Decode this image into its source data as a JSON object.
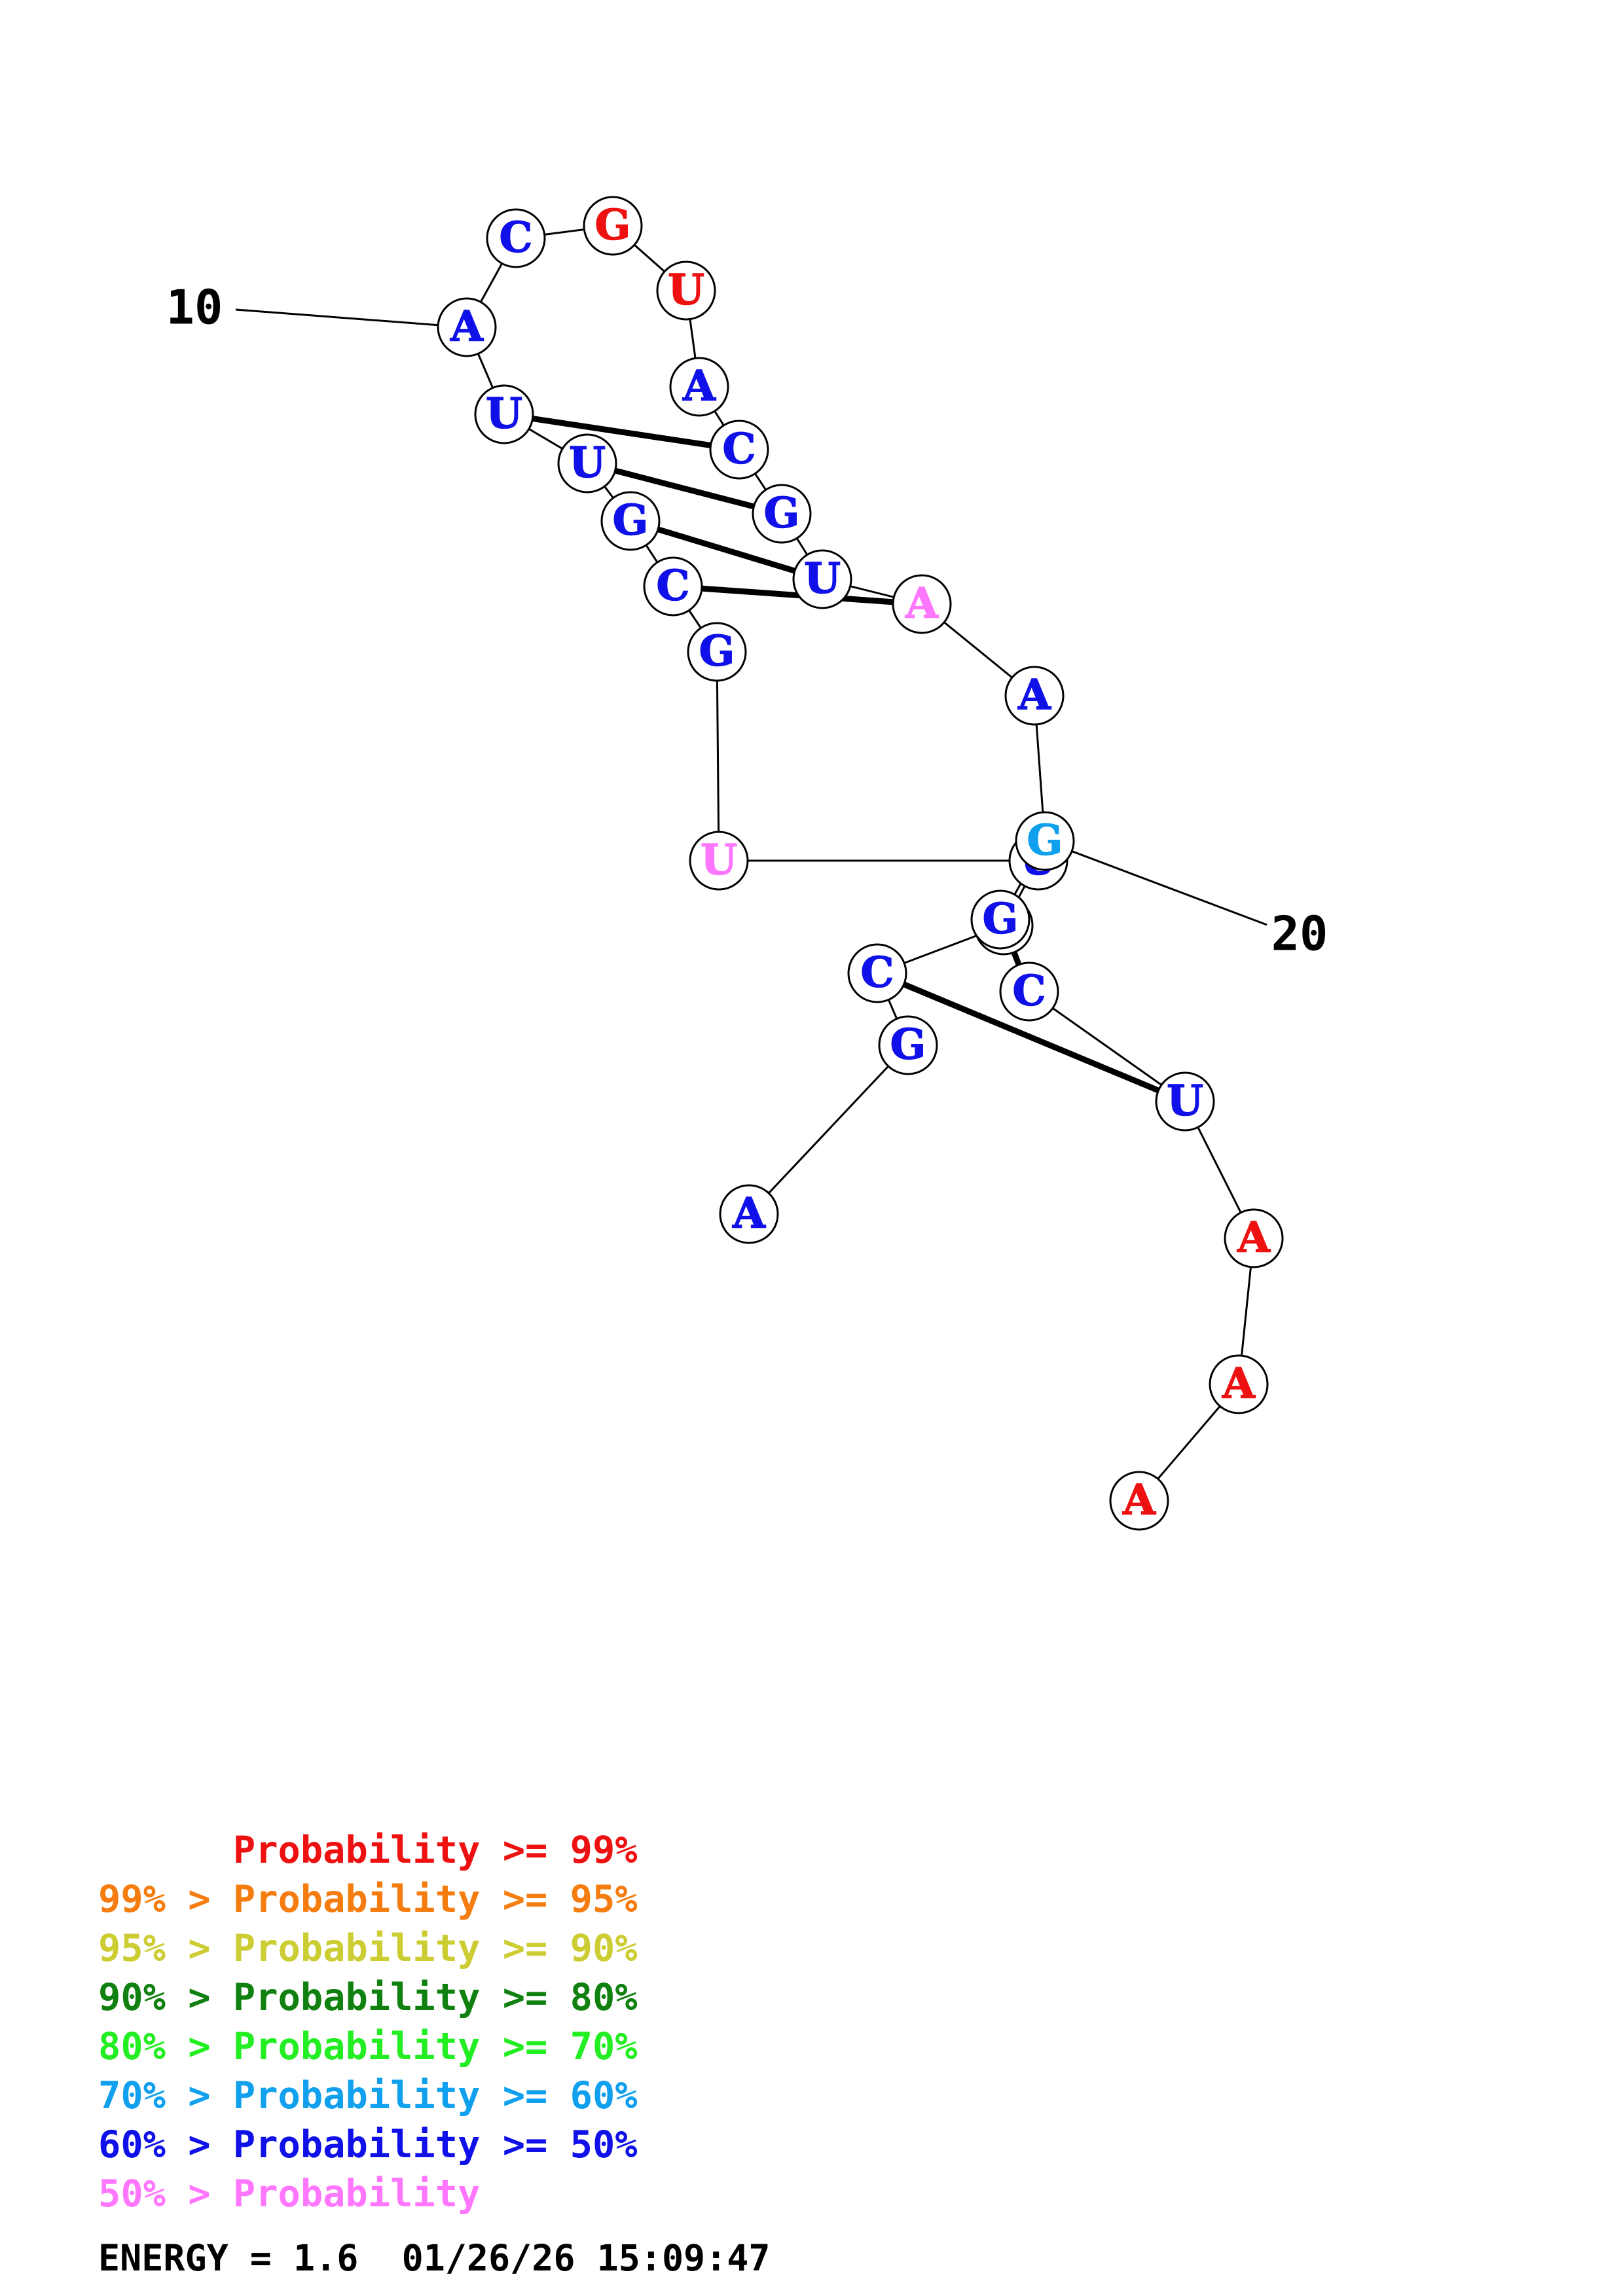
{
  "structure": {
    "nucleotides": [
      {
        "base": "A",
        "color": "#1010e8"
      },
      {
        "base": "G",
        "color": "#1010e8"
      },
      {
        "base": "C",
        "color": "#1010e8"
      },
      {
        "base": "G",
        "color": "#1010e8"
      },
      {
        "base": "U",
        "color": "#1010e8"
      },
      {
        "base": "U",
        "color": "#ff77ff"
      },
      {
        "base": "G",
        "color": "#1010e8"
      },
      {
        "base": "C",
        "color": "#1010e8"
      },
      {
        "base": "G",
        "color": "#1010e8"
      },
      {
        "base": "U",
        "color": "#1010e8"
      },
      {
        "base": "U",
        "color": "#1010e8"
      },
      {
        "base": "A",
        "color": "#1010e8"
      },
      {
        "base": "C",
        "color": "#1010e8"
      },
      {
        "base": "G",
        "color": "#ee1111"
      },
      {
        "base": "U",
        "color": "#ee1111"
      },
      {
        "base": "A",
        "color": "#1010e8"
      },
      {
        "base": "C",
        "color": "#1010e8"
      },
      {
        "base": "G",
        "color": "#1010e8"
      },
      {
        "base": "U",
        "color": "#1010e8"
      },
      {
        "base": "A",
        "color": "#ff77ff"
      },
      {
        "base": "A",
        "color": "#1010e8"
      },
      {
        "base": "G",
        "color": "#10a0ee"
      },
      {
        "base": "G",
        "color": "#1010e8"
      },
      {
        "base": "C",
        "color": "#1010e8"
      },
      {
        "base": "U",
        "color": "#1010e8"
      },
      {
        "base": "A",
        "color": "#ee1111"
      },
      {
        "base": "A",
        "color": "#ee1111"
      },
      {
        "base": "A",
        "color": "#ee1111"
      }
    ],
    "pairs": [
      [
        2,
        24
      ],
      [
        3,
        23
      ],
      [
        7,
        19
      ],
      [
        8,
        18
      ],
      [
        9,
        17
      ],
      [
        10,
        16
      ]
    ],
    "position_labels": [
      {
        "index": 12,
        "text": "10"
      },
      {
        "index": 22,
        "text": "20"
      }
    ]
  },
  "legend": [
    {
      "text": "      Probability >= 99%",
      "color": "#ee1111"
    },
    {
      "text": "99% > Probability >= 95%",
      "color": "#f57d10"
    },
    {
      "text": "95% > Probability >= 90%",
      "color": "#cccc33"
    },
    {
      "text": "90% > Probability >= 80%",
      "color": "#108010"
    },
    {
      "text": "80% > Probability >= 70%",
      "color": "#22ee22"
    },
    {
      "text": "70% > Probability >= 60%",
      "color": "#10a0ee"
    },
    {
      "text": "60% > Probability >= 50%",
      "color": "#1010e8"
    },
    {
      "text": "50% > Probability",
      "color": "#ff77ff"
    }
  ],
  "footer": {
    "energy_label": "ENERGY = 1.6",
    "timestamp": "01/26/26 15:09:47"
  }
}
